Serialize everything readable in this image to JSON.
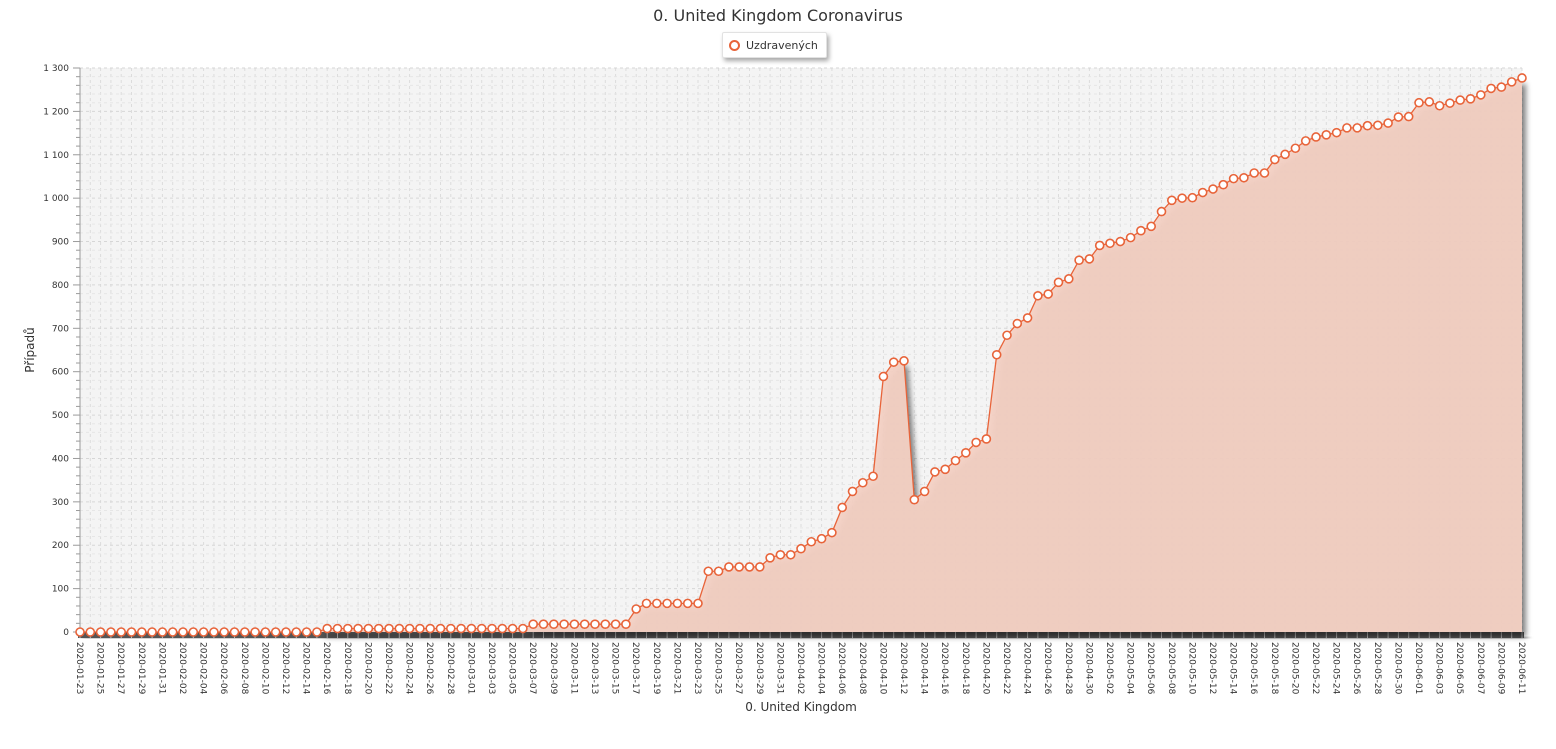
{
  "chart_data": {
    "type": "area",
    "title": "0. United Kingdom Coronavirus",
    "xlabel": "0. United Kingdom",
    "ylabel": "Případů",
    "ylim": [
      0,
      1300
    ],
    "yticks": [
      0,
      100,
      200,
      300,
      400,
      500,
      600,
      700,
      800,
      900,
      1000,
      1100,
      1200,
      1300
    ],
    "ytick_labels": [
      "0",
      "100",
      "200",
      "300",
      "400",
      "500",
      "600",
      "700",
      "800",
      "900",
      "1 000",
      "1 100",
      "1 200",
      "1 300"
    ],
    "grid": true,
    "legend_position": "top-center",
    "colors": {
      "line": "#e8643a",
      "fill": "#f4cfc2",
      "plot_bg": "#f4f4f4",
      "grid": "#dcdcdc"
    },
    "x": [
      "2020-01-23",
      "2020-01-24",
      "2020-01-25",
      "2020-01-26",
      "2020-01-27",
      "2020-01-28",
      "2020-01-29",
      "2020-01-30",
      "2020-01-31",
      "2020-02-01",
      "2020-02-02",
      "2020-02-03",
      "2020-02-04",
      "2020-02-05",
      "2020-02-06",
      "2020-02-07",
      "2020-02-08",
      "2020-02-09",
      "2020-02-10",
      "2020-02-11",
      "2020-02-12",
      "2020-02-13",
      "2020-02-14",
      "2020-02-15",
      "2020-02-16",
      "2020-02-17",
      "2020-02-18",
      "2020-02-19",
      "2020-02-20",
      "2020-02-21",
      "2020-02-22",
      "2020-02-23",
      "2020-02-24",
      "2020-02-25",
      "2020-02-26",
      "2020-02-27",
      "2020-02-28",
      "2020-02-29",
      "2020-03-01",
      "2020-03-02",
      "2020-03-03",
      "2020-03-04",
      "2020-03-05",
      "2020-03-06",
      "2020-03-07",
      "2020-03-08",
      "2020-03-09",
      "2020-03-10",
      "2020-03-11",
      "2020-03-12",
      "2020-03-13",
      "2020-03-14",
      "2020-03-15",
      "2020-03-16",
      "2020-03-17",
      "2020-03-18",
      "2020-03-19",
      "2020-03-20",
      "2020-03-21",
      "2020-03-22",
      "2020-03-23",
      "2020-03-24",
      "2020-03-25",
      "2020-03-26",
      "2020-03-27",
      "2020-03-28",
      "2020-03-29",
      "2020-03-30",
      "2020-03-31",
      "2020-04-01",
      "2020-04-02",
      "2020-04-03",
      "2020-04-04",
      "2020-04-05",
      "2020-04-06",
      "2020-04-07",
      "2020-04-08",
      "2020-04-09",
      "2020-04-10",
      "2020-04-11",
      "2020-04-12",
      "2020-04-13",
      "2020-04-14",
      "2020-04-15",
      "2020-04-16",
      "2020-04-17",
      "2020-04-18",
      "2020-04-19",
      "2020-04-20",
      "2020-04-21",
      "2020-04-22",
      "2020-04-23",
      "2020-04-24",
      "2020-04-25",
      "2020-04-26",
      "2020-04-27",
      "2020-04-28",
      "2020-04-29",
      "2020-04-30",
      "2020-05-01",
      "2020-05-02",
      "2020-05-03",
      "2020-05-04",
      "2020-05-05",
      "2020-05-06",
      "2020-05-07",
      "2020-05-08",
      "2020-05-09",
      "2020-05-10",
      "2020-05-11",
      "2020-05-12",
      "2020-05-13",
      "2020-05-14",
      "2020-05-15",
      "2020-05-16",
      "2020-05-17",
      "2020-05-18",
      "2020-05-19",
      "2020-05-20",
      "2020-05-21",
      "2020-05-22",
      "2020-05-23",
      "2020-05-24",
      "2020-05-25",
      "2020-05-26",
      "2020-05-27",
      "2020-05-28",
      "2020-05-29",
      "2020-05-30",
      "2020-05-31",
      "2020-06-01",
      "2020-06-02",
      "2020-06-03",
      "2020-06-04",
      "2020-06-05",
      "2020-06-06",
      "2020-06-07",
      "2020-06-08",
      "2020-06-09",
      "2020-06-10",
      "2020-06-11"
    ],
    "xtick_labels": [
      "2020-01-23",
      "2020-01-25",
      "2020-01-27",
      "2020-01-29",
      "2020-01-31",
      "2020-02-02",
      "2020-02-04",
      "2020-02-06",
      "2020-02-08",
      "2020-02-10",
      "2020-02-12",
      "2020-02-14",
      "2020-02-16",
      "2020-02-18",
      "2020-02-20",
      "2020-02-22",
      "2020-02-24",
      "2020-02-26",
      "2020-02-28",
      "2020-03-01",
      "2020-03-03",
      "2020-03-05",
      "2020-03-07",
      "2020-03-09",
      "2020-03-11",
      "2020-03-13",
      "2020-03-15",
      "2020-03-17",
      "2020-03-19",
      "2020-03-21",
      "2020-03-23",
      "2020-03-25",
      "2020-03-27",
      "2020-03-29",
      "2020-03-31",
      "2020-04-02",
      "2020-04-04",
      "2020-04-06",
      "2020-04-08",
      "2020-04-10",
      "2020-04-12",
      "2020-04-14",
      "2020-04-16",
      "2020-04-18",
      "2020-04-20",
      "2020-04-22",
      "2020-04-24",
      "2020-04-26",
      "2020-04-28",
      "2020-04-30",
      "2020-05-02",
      "2020-05-04",
      "2020-05-06",
      "2020-05-08",
      "2020-05-10",
      "2020-05-12",
      "2020-05-14",
      "2020-05-16",
      "2020-05-18",
      "2020-05-20",
      "2020-05-22",
      "2020-05-24",
      "2020-05-26",
      "2020-05-28",
      "2020-05-30",
      "2020-06-01",
      "2020-06-03",
      "2020-06-05",
      "2020-06-07",
      "2020-06-09",
      "2020-06-11"
    ],
    "series": [
      {
        "name": "Uzdravených",
        "values": [
          0,
          0,
          0,
          0,
          0,
          0,
          0,
          0,
          0,
          0,
          0,
          0,
          0,
          0,
          0,
          0,
          0,
          0,
          0,
          0,
          0,
          0,
          0,
          0,
          8,
          8,
          8,
          8,
          8,
          8,
          8,
          8,
          8,
          8,
          8,
          8,
          8,
          8,
          8,
          8,
          8,
          8,
          8,
          8,
          18,
          18,
          18,
          18,
          18,
          18,
          18,
          18,
          18,
          18,
          53,
          66,
          66,
          66,
          66,
          66,
          66,
          140,
          140,
          150,
          150,
          150,
          150,
          171,
          178,
          178,
          192,
          208,
          215,
          229,
          287,
          324,
          344,
          359,
          589,
          622,
          625,
          305,
          324,
          369,
          375,
          395,
          413,
          437,
          445,
          639,
          684,
          711,
          724,
          775,
          779,
          806,
          814,
          857,
          860,
          891,
          896,
          900,
          909,
          925,
          935,
          969,
          995,
          1000,
          1001,
          1013,
          1021,
          1031,
          1045,
          1047,
          1058,
          1058,
          1089,
          1101,
          1115,
          1132,
          1141,
          1146,
          1151,
          1162,
          1162,
          1167,
          1168,
          1173,
          1187,
          1188,
          1220,
          1222,
          1213,
          1219,
          1226,
          1229,
          1238,
          1253,
          1256,
          1268,
          1277
        ]
      }
    ]
  }
}
